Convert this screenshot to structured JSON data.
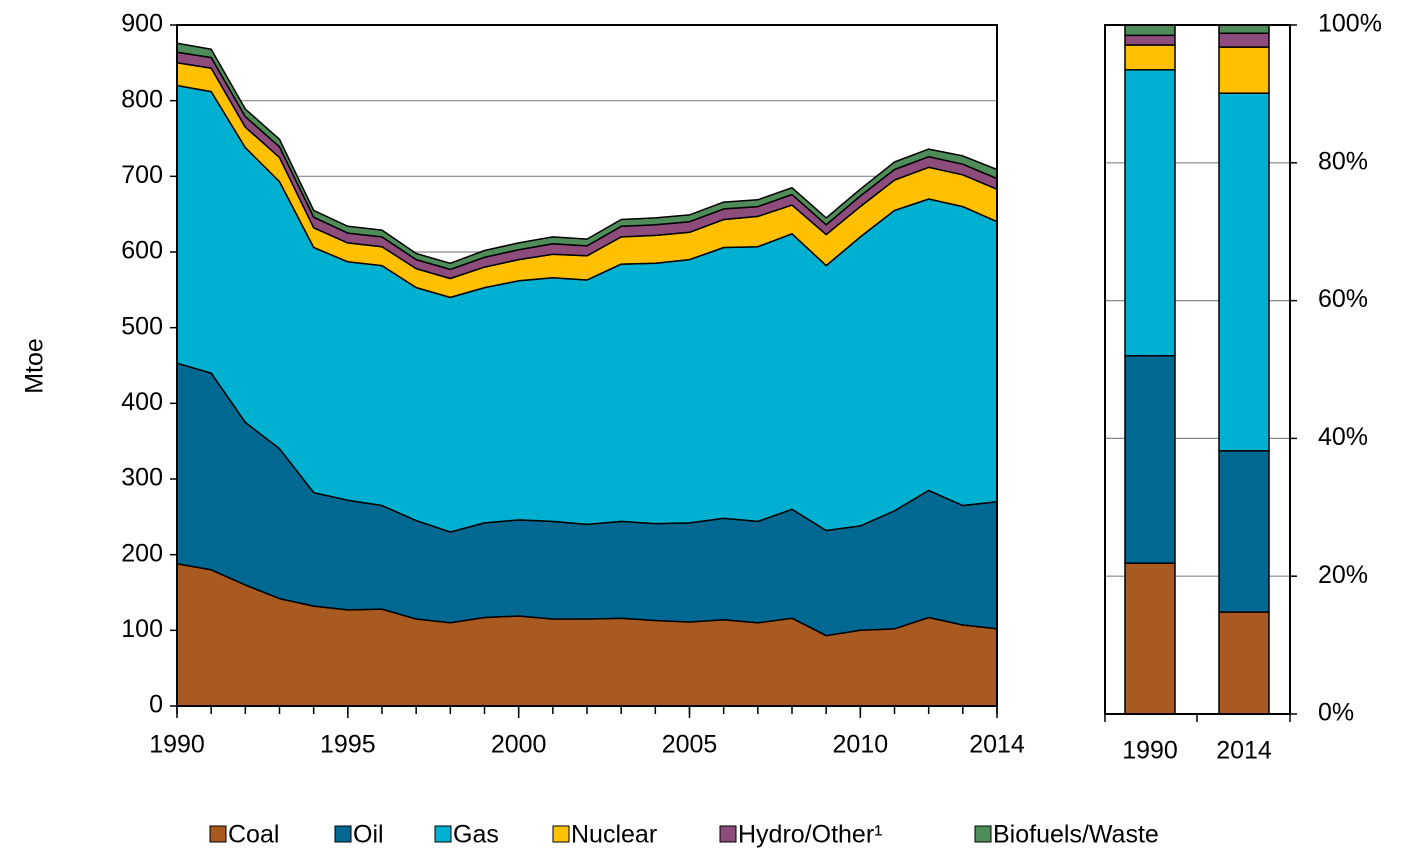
{
  "chart_data": [
    {
      "type": "area",
      "y_label": "Mtoe",
      "x": [
        1990,
        1991,
        1992,
        1993,
        1994,
        1995,
        1996,
        1997,
        1998,
        1999,
        2000,
        2001,
        2002,
        2003,
        2004,
        2005,
        2006,
        2007,
        2008,
        2009,
        2010,
        2011,
        2012,
        2013,
        2014
      ],
      "xlim": [
        1990,
        2014
      ],
      "xticks": [
        1990,
        1995,
        2000,
        2005,
        2010,
        2014
      ],
      "ylim": [
        0,
        900
      ],
      "yticks": [
        0,
        100,
        200,
        300,
        400,
        500,
        600,
        700,
        800,
        900
      ],
      "grid": true,
      "legend": "bottom",
      "series": [
        {
          "name": "Coal",
          "color": "#a95a21",
          "values": [
            188,
            180,
            160,
            142,
            132,
            127,
            128,
            115,
            110,
            117,
            119,
            115,
            115,
            116,
            113,
            111,
            114,
            110,
            116,
            93,
            100,
            102,
            117,
            107,
            102
          ]
        },
        {
          "name": "Oil",
          "color": "#006891",
          "values": [
            265,
            260,
            215,
            198,
            150,
            145,
            137,
            130,
            120,
            125,
            127,
            129,
            125,
            128,
            128,
            131,
            134,
            134,
            144,
            139,
            138,
            156,
            168,
            158,
            168
          ]
        },
        {
          "name": "Gas",
          "color": "#00b0d0",
          "values": [
            367,
            372,
            363,
            353,
            324,
            315,
            317,
            308,
            310,
            311,
            316,
            322,
            323,
            340,
            344,
            348,
            358,
            363,
            364,
            350,
            382,
            397,
            385,
            395,
            370
          ]
        },
        {
          "name": "Nuclear",
          "color": "#ffc000",
          "values": [
            30,
            31,
            27,
            32,
            26,
            25,
            25,
            25,
            25,
            27,
            28,
            31,
            32,
            36,
            37,
            36,
            37,
            40,
            38,
            41,
            40,
            40,
            42,
            42,
            43
          ]
        },
        {
          "name": "Hydro/Other¹",
          "color": "#8e4c7d",
          "values": [
            14,
            14,
            14,
            14,
            14,
            13,
            13,
            12,
            12,
            13,
            13,
            14,
            13,
            14,
            14,
            14,
            14,
            13,
            14,
            13,
            14,
            14,
            14,
            14,
            14
          ]
        },
        {
          "name": "Biofuels/Waste",
          "color": "#4e8c59",
          "values": [
            12,
            11,
            10,
            10,
            9,
            9,
            9,
            8,
            8,
            9,
            9,
            9,
            9,
            9,
            9,
            9,
            9,
            9,
            9,
            9,
            9,
            10,
            10,
            11,
            12
          ]
        }
      ]
    },
    {
      "type": "stacked_bar",
      "categories": [
        "1990",
        "2014"
      ],
      "ylim": [
        0,
        100
      ],
      "yticks": [
        {
          "value": 0,
          "label": "0%"
        },
        {
          "value": 20,
          "label": "20%"
        },
        {
          "value": 40,
          "label": "40%"
        },
        {
          "value": 60,
          "label": "60%"
        },
        {
          "value": 80,
          "label": "80%"
        },
        {
          "value": 100,
          "label": "100%"
        }
      ],
      "grid": true,
      "series": [
        {
          "color": "#a95a21",
          "values": [
            21.9,
            14.8
          ]
        },
        {
          "color": "#006891",
          "values": [
            30.1,
            23.4
          ]
        },
        {
          "color": "#00b0d0",
          "values": [
            41.5,
            51.9
          ]
        },
        {
          "color": "#ffc000",
          "values": [
            3.6,
            6.7
          ]
        },
        {
          "color": "#8e4c7d",
          "values": [
            1.4,
            2.0
          ]
        },
        {
          "color": "#4e8c59",
          "values": [
            1.5,
            1.2
          ]
        }
      ]
    }
  ]
}
